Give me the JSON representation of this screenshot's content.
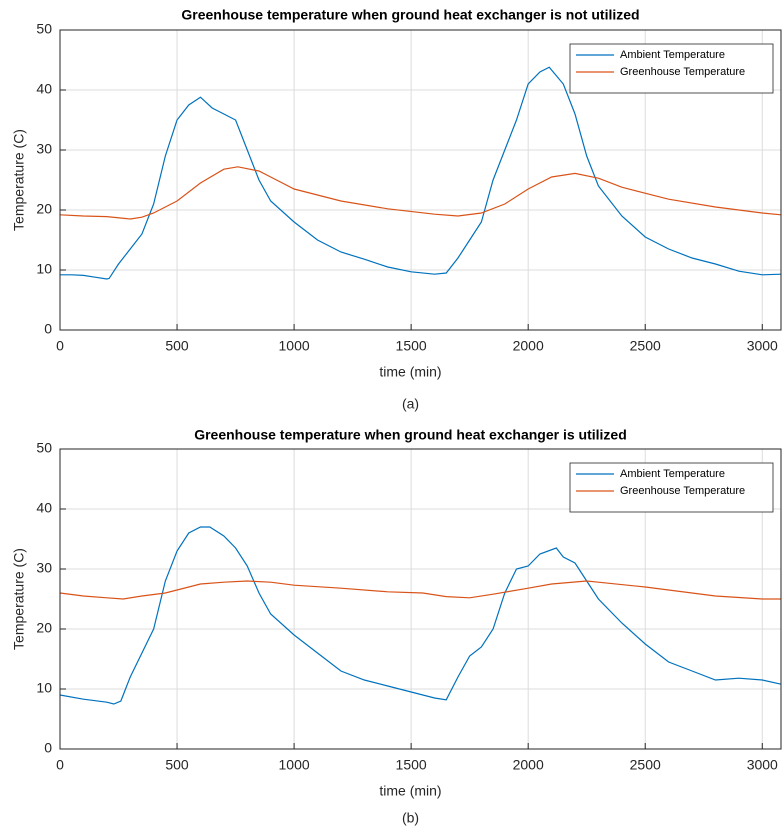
{
  "chart_data": [
    {
      "type": "line",
      "title": "Greenhouse temperature when ground heat exchanger is not utilized",
      "xlabel": "time (min)",
      "ylabel": "Temperature (C)",
      "caption": "(a)",
      "xlim": [
        0,
        3080
      ],
      "ylim": [
        0,
        50
      ],
      "xticks": [
        0,
        500,
        1000,
        1500,
        2000,
        2500,
        3000
      ],
      "yticks": [
        0,
        10,
        20,
        30,
        40,
        50
      ],
      "grid": true,
      "legend": "northeast",
      "series": [
        {
          "name": "Ambient Temperature",
          "color": "#0072BD",
          "x": [
            0,
            50,
            100,
            150,
            200,
            210,
            250,
            300,
            350,
            400,
            450,
            500,
            550,
            600,
            650,
            700,
            750,
            800,
            850,
            900,
            1000,
            1100,
            1200,
            1300,
            1400,
            1500,
            1600,
            1650,
            1700,
            1750,
            1800,
            1850,
            1900,
            1950,
            2000,
            2050,
            2090,
            2150,
            2200,
            2250,
            2300,
            2400,
            2500,
            2600,
            2700,
            2800,
            2900,
            3000,
            3080
          ],
          "values": [
            9.2,
            9.2,
            9.1,
            8.8,
            8.5,
            8.6,
            11,
            13.5,
            16,
            21,
            29,
            35,
            37.5,
            38.8,
            37,
            36,
            35,
            30,
            25,
            21.5,
            18,
            15,
            13,
            11.8,
            10.5,
            9.7,
            9.3,
            9.5,
            12,
            15,
            18,
            25,
            30,
            35,
            41,
            43,
            43.8,
            41,
            36,
            29,
            24,
            19,
            15.5,
            13.5,
            12,
            11,
            9.8,
            9.2,
            9.3
          ]
        },
        {
          "name": "Greenhouse Temperature",
          "color": "#D95319",
          "x": [
            0,
            100,
            200,
            300,
            350,
            400,
            500,
            600,
            700,
            760,
            850,
            900,
            1000,
            1200,
            1400,
            1600,
            1700,
            1800,
            1900,
            2000,
            2100,
            2200,
            2300,
            2400,
            2600,
            2800,
            3000,
            3080
          ],
          "values": [
            19.2,
            19,
            18.9,
            18.5,
            18.8,
            19.5,
            21.5,
            24.5,
            26.8,
            27.2,
            26.5,
            25.5,
            23.5,
            21.5,
            20.2,
            19.3,
            19,
            19.5,
            21,
            23.5,
            25.5,
            26.1,
            25.3,
            23.8,
            21.8,
            20.5,
            19.5,
            19.2
          ]
        }
      ]
    },
    {
      "type": "line",
      "title": "Greenhouse temperature when ground heat exchanger is utilized",
      "xlabel": "time (min)",
      "ylabel": "Temperature (C)",
      "caption": "(b)",
      "xlim": [
        0,
        3080
      ],
      "ylim": [
        0,
        50
      ],
      "xticks": [
        0,
        500,
        1000,
        1500,
        2000,
        2500,
        3000
      ],
      "yticks": [
        0,
        10,
        20,
        30,
        40,
        50
      ],
      "grid": true,
      "legend": "northeast",
      "series": [
        {
          "name": "Ambient Temperature",
          "color": "#0072BD",
          "x": [
            0,
            100,
            200,
            230,
            260,
            300,
            350,
            400,
            450,
            500,
            550,
            600,
            640,
            700,
            750,
            800,
            850,
            900,
            1000,
            1100,
            1200,
            1300,
            1400,
            1500,
            1600,
            1650,
            1700,
            1750,
            1800,
            1850,
            1900,
            1950,
            2000,
            2050,
            2120,
            2150,
            2200,
            2250,
            2300,
            2400,
            2500,
            2600,
            2700,
            2800,
            2900,
            3000,
            3080
          ],
          "values": [
            9,
            8.3,
            7.8,
            7.5,
            8,
            12,
            16,
            20,
            28,
            33,
            36,
            37,
            37,
            35.5,
            33.5,
            30.5,
            26,
            22.5,
            19,
            16,
            13,
            11.5,
            10.5,
            9.5,
            8.5,
            8.2,
            12,
            15.5,
            17,
            20,
            26,
            30,
            30.5,
            32.5,
            33.5,
            32,
            31,
            28,
            25,
            21,
            17.5,
            14.5,
            13,
            11.5,
            11.8,
            11.5,
            10.8
          ]
        },
        {
          "name": "Greenhouse Temperature",
          "color": "#D95319",
          "x": [
            0,
            100,
            200,
            270,
            350,
            450,
            500,
            600,
            700,
            800,
            900,
            1000,
            1200,
            1400,
            1550,
            1650,
            1750,
            1850,
            2000,
            2100,
            2250,
            2300,
            2500,
            2700,
            2800,
            3000,
            3080
          ],
          "values": [
            26,
            25.5,
            25.2,
            25,
            25.5,
            26,
            26.5,
            27.5,
            27.8,
            28,
            27.8,
            27.3,
            26.8,
            26.2,
            26,
            25.4,
            25.2,
            25.8,
            26.8,
            27.5,
            28,
            27.8,
            27,
            26,
            25.5,
            25,
            25
          ]
        }
      ]
    }
  ]
}
